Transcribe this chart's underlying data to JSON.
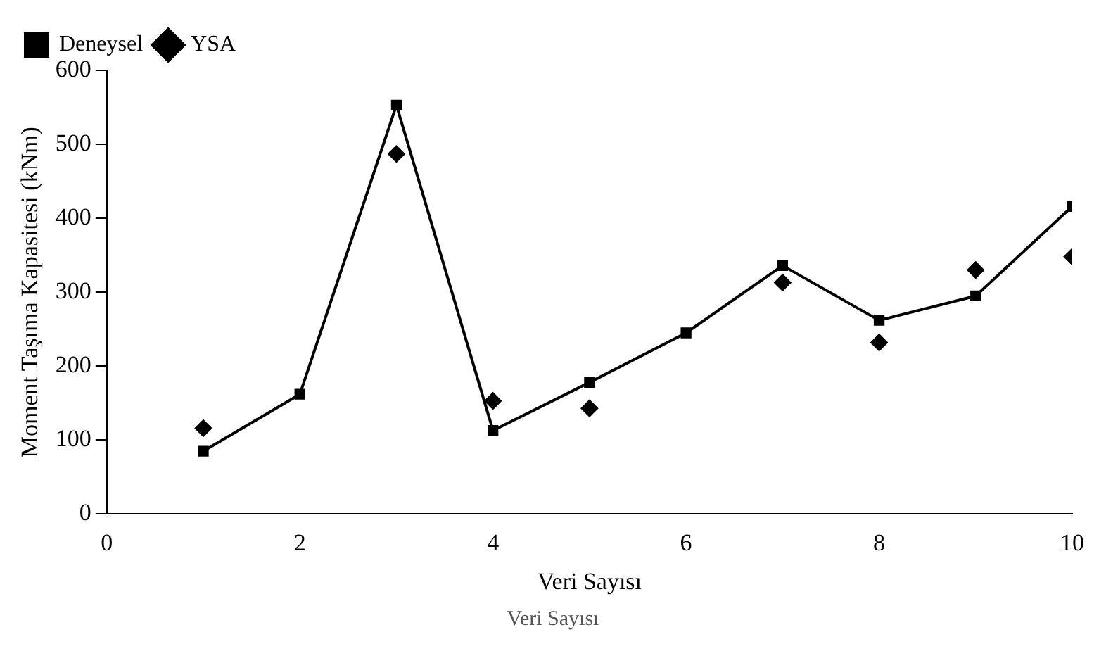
{
  "chart_data": {
    "type": "line",
    "xlabel": "Veri Sayısı",
    "ylabel": "Moment Taşıma Kapasitesi (kNm)",
    "x": [
      1,
      2,
      3,
      4,
      5,
      6,
      7,
      8,
      9,
      10
    ],
    "series": [
      {
        "name": "Deneysel",
        "color": "#000000",
        "values": [
          85,
          162,
          553,
          113,
          178,
          245,
          336,
          262,
          295,
          416
        ],
        "marker": "square",
        "line_style": "solid"
      },
      {
        "name": "YSA",
        "type": "scatter",
        "color": "#000000",
        "values": [
          116,
          null,
          487,
          153,
          143,
          null,
          313,
          232,
          330,
          348
        ],
        "marker": "diamond"
      }
    ],
    "xlim": [
      0,
      10
    ],
    "xticks": [
      0,
      2,
      4,
      6,
      8,
      10
    ],
    "ylim": [
      0,
      600
    ],
    "yticks": [
      0,
      100,
      200,
      300,
      400,
      500,
      600
    ],
    "grid": false,
    "legend": "top left",
    "annotations": [
      "Veri Sayısı"
    ]
  }
}
